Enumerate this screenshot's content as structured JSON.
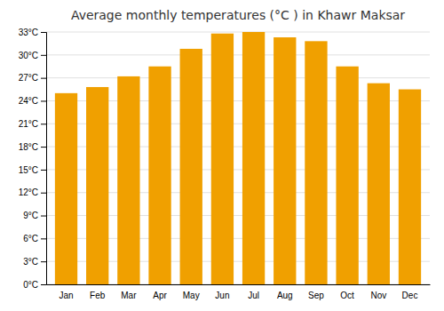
{
  "chart_data": {
    "type": "bar",
    "title": "Average monthly temperatures (°C ) in Khawr Maksar",
    "categories": [
      "Jan",
      "Feb",
      "Mar",
      "Apr",
      "May",
      "Jun",
      "Jul",
      "Aug",
      "Sep",
      "Oct",
      "Nov",
      "Dec"
    ],
    "values": [
      25.0,
      25.8,
      27.2,
      28.5,
      30.8,
      32.8,
      33.0,
      32.3,
      31.8,
      28.5,
      26.3,
      25.5
    ],
    "color": "#F0A000",
    "ylim": [
      0,
      33
    ],
    "yticks": [
      {
        "value": 0,
        "label": "0°C"
      },
      {
        "value": 3,
        "label": "3°C"
      },
      {
        "value": 6,
        "label": "6°C"
      },
      {
        "value": 9,
        "label": "9°C"
      },
      {
        "value": 12,
        "label": "12°C"
      },
      {
        "value": 15,
        "label": "15°C"
      },
      {
        "value": 18,
        "label": "18°C"
      },
      {
        "value": 21,
        "label": "21°C"
      },
      {
        "value": 24,
        "label": "24°C"
      },
      {
        "value": 27,
        "label": "27°C"
      },
      {
        "value": 30,
        "label": "30°C"
      },
      {
        "value": 33,
        "label": "33°C"
      }
    ],
    "grid": true
  }
}
